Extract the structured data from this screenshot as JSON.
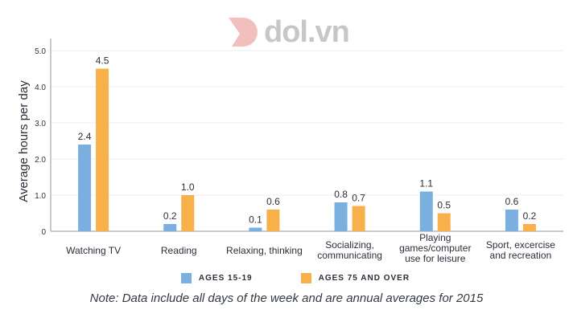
{
  "logo": {
    "text": "dol.vn"
  },
  "chart_data": {
    "type": "bar",
    "categories": [
      "Watching TV",
      "Reading",
      "Relaxing, thinking",
      "Socializing, communicating",
      "Playing games/computer use for leisure",
      "Sport, excercise and recreation"
    ],
    "category_lines": [
      [
        "Watching TV"
      ],
      [
        "Reading"
      ],
      [
        "Relaxing, thinking"
      ],
      [
        "Socializing,",
        "communicating"
      ],
      [
        "Playing",
        "games/computer",
        "use for leisure"
      ],
      [
        "Sport, excercise",
        "and recreation"
      ]
    ],
    "series": [
      {
        "name": "AGES 15-19",
        "values": [
          2.4,
          0.2,
          0.1,
          0.8,
          1.1,
          0.6
        ],
        "color": "#7aafe0"
      },
      {
        "name": "AGES 75 AND OVER",
        "values": [
          4.5,
          1.0,
          0.6,
          0.7,
          0.5,
          0.2
        ],
        "color": "#f7b04a"
      }
    ],
    "data_labels": [
      [
        "2.4",
        "0.2",
        "0.1",
        "0.8",
        "1.1",
        "0.6"
      ],
      [
        "4.5",
        "1.0",
        "0.6",
        "0.7",
        "0.5",
        "0.2"
      ]
    ],
    "ylabel": "Average hours per day",
    "xlabel": "",
    "ylim": [
      0,
      5
    ],
    "yticks": [
      "0",
      "1.0",
      "2.0",
      "3.0",
      "4.0",
      "5.0"
    ],
    "grid": true,
    "legend": "bottom",
    "note": "Note: Data include all days of the week and are annual averages for 2015"
  }
}
